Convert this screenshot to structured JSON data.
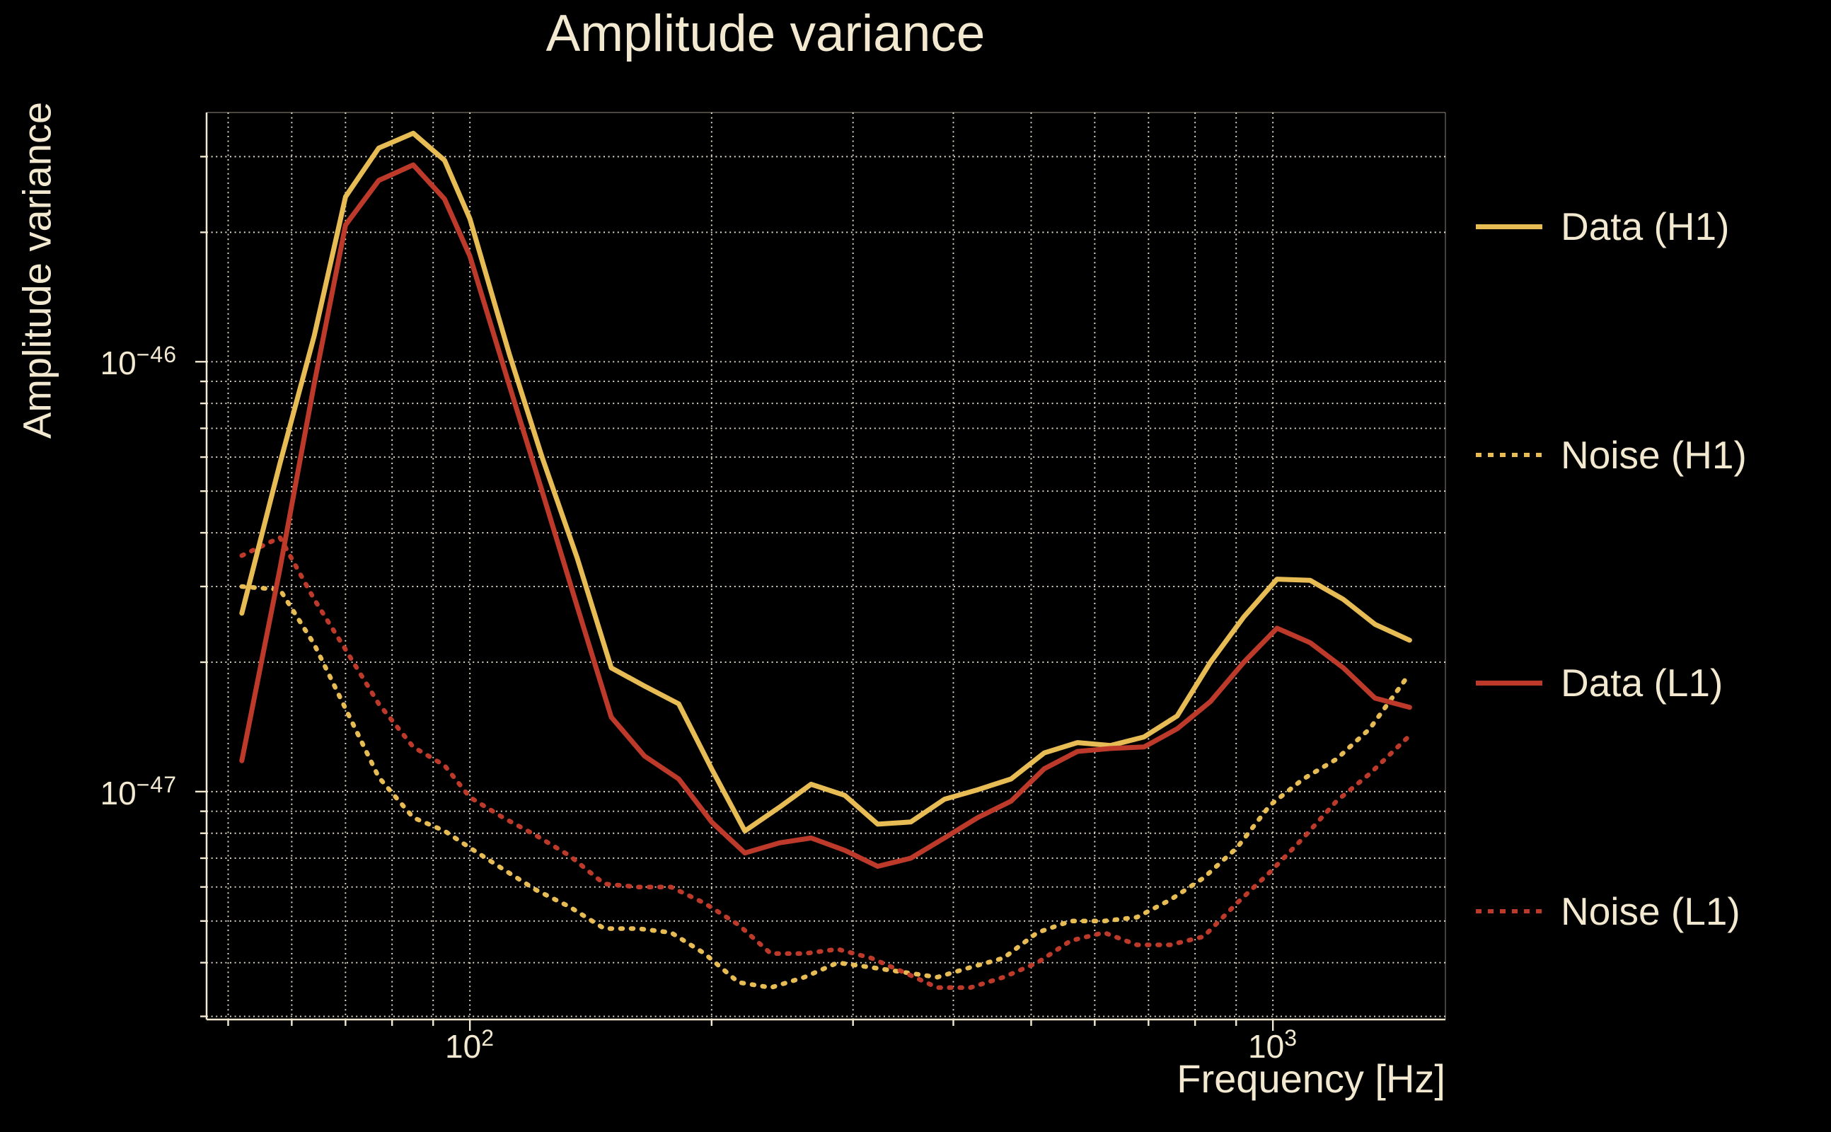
{
  "title": "Amplitude variance",
  "colors": {
    "background": "#000000",
    "text": "#f2e9d0",
    "grid": "#efe8d3",
    "h1": "#e8bc55",
    "l1": "#bd3a2b"
  },
  "chart_data": {
    "type": "line",
    "title": "Amplitude variance",
    "xlabel": "Frequency [Hz]",
    "ylabel": "Amplitude variance",
    "x_scale": "log",
    "y_scale": "log",
    "xlim": [
      47,
      1640
    ],
    "ylim": [
      2.95e-48,
      3.8e-46
    ],
    "grid": "major+minor, dotted, both axes",
    "legend_position": "outside right",
    "x_ticks": [
      {
        "value": 100,
        "base": "10",
        "exp": "2"
      },
      {
        "value": 1000,
        "base": "10",
        "exp": "3"
      }
    ],
    "y_ticks": [
      {
        "value": 1e-46,
        "base": "10",
        "exp": "−46"
      },
      {
        "value": 1e-47,
        "base": "10",
        "exp": "−47"
      }
    ],
    "value_scale": 1e-47,
    "series": [
      {
        "name": "Data (H1)",
        "style": "solid",
        "color": "#e8bc55",
        "points": [
          [
            52,
            2.6
          ],
          [
            58,
            5.8
          ],
          [
            64,
            11.5
          ],
          [
            70,
            24.2
          ],
          [
            77,
            31.4
          ],
          [
            85,
            34.0
          ],
          [
            93,
            29.4
          ],
          [
            100,
            21.5
          ],
          [
            112,
            10.4
          ],
          [
            123,
            6.0
          ],
          [
            136,
            3.5
          ],
          [
            150,
            1.94
          ],
          [
            165,
            1.76
          ],
          [
            182,
            1.6
          ],
          [
            200,
            1.13
          ],
          [
            220,
            0.81
          ],
          [
            243,
            0.92
          ],
          [
            266,
            1.04
          ],
          [
            293,
            0.98
          ],
          [
            322,
            0.84
          ],
          [
            354,
            0.85
          ],
          [
            390,
            0.96
          ],
          [
            429,
            1.01
          ],
          [
            472,
            1.07
          ],
          [
            519,
            1.23
          ],
          [
            571,
            1.3
          ],
          [
            628,
            1.28
          ],
          [
            691,
            1.34
          ],
          [
            760,
            1.5
          ],
          [
            836,
            2.0
          ],
          [
            920,
            2.55
          ],
          [
            1012,
            3.12
          ],
          [
            1113,
            3.1
          ],
          [
            1224,
            2.8
          ],
          [
            1340,
            2.45
          ],
          [
            1480,
            2.25
          ]
        ]
      },
      {
        "name": "Noise (H1)",
        "style": "dotted",
        "color": "#e8bc55",
        "points": [
          [
            52,
            3.0
          ],
          [
            58,
            2.95
          ],
          [
            64,
            2.2
          ],
          [
            70,
            1.56
          ],
          [
            77,
            1.08
          ],
          [
            85,
            0.87
          ],
          [
            93,
            0.81
          ],
          [
            100,
            0.74
          ],
          [
            110,
            0.66
          ],
          [
            121,
            0.59
          ],
          [
            133,
            0.54
          ],
          [
            147,
            0.48
          ],
          [
            162,
            0.48
          ],
          [
            178,
            0.47
          ],
          [
            196,
            0.42
          ],
          [
            216,
            0.36
          ],
          [
            237,
            0.35
          ],
          [
            261,
            0.37
          ],
          [
            287,
            0.4
          ],
          [
            316,
            0.39
          ],
          [
            347,
            0.38
          ],
          [
            382,
            0.37
          ],
          [
            420,
            0.39
          ],
          [
            462,
            0.41
          ],
          [
            509,
            0.47
          ],
          [
            560,
            0.5
          ],
          [
            616,
            0.5
          ],
          [
            677,
            0.51
          ],
          [
            745,
            0.56
          ],
          [
            820,
            0.63
          ],
          [
            902,
            0.74
          ],
          [
            992,
            0.93
          ],
          [
            1091,
            1.07
          ],
          [
            1200,
            1.19
          ],
          [
            1320,
            1.4
          ],
          [
            1480,
            1.88
          ]
        ]
      },
      {
        "name": "Data (L1)",
        "style": "solid",
        "color": "#bd3a2b",
        "points": [
          [
            52,
            1.18
          ],
          [
            58,
            3.3
          ],
          [
            64,
            8.9
          ],
          [
            70,
            20.8
          ],
          [
            77,
            26.4
          ],
          [
            85,
            28.7
          ],
          [
            93,
            23.9
          ],
          [
            100,
            17.6
          ],
          [
            112,
            8.8
          ],
          [
            123,
            5.0
          ],
          [
            136,
            2.7
          ],
          [
            150,
            1.49
          ],
          [
            165,
            1.21
          ],
          [
            182,
            1.07
          ],
          [
            200,
            0.85
          ],
          [
            220,
            0.72
          ],
          [
            243,
            0.76
          ],
          [
            266,
            0.78
          ],
          [
            293,
            0.73
          ],
          [
            322,
            0.67
          ],
          [
            354,
            0.7
          ],
          [
            390,
            0.78
          ],
          [
            429,
            0.87
          ],
          [
            472,
            0.95
          ],
          [
            519,
            1.13
          ],
          [
            571,
            1.24
          ],
          [
            628,
            1.26
          ],
          [
            691,
            1.27
          ],
          [
            760,
            1.4
          ],
          [
            836,
            1.62
          ],
          [
            920,
            2.0
          ],
          [
            1012,
            2.4
          ],
          [
            1113,
            2.22
          ],
          [
            1224,
            1.94
          ],
          [
            1340,
            1.65
          ],
          [
            1480,
            1.57
          ]
        ]
      },
      {
        "name": "Noise (L1)",
        "style": "dotted",
        "color": "#bd3a2b",
        "points": [
          [
            52,
            3.54
          ],
          [
            58,
            3.9
          ],
          [
            64,
            2.8
          ],
          [
            70,
            2.14
          ],
          [
            77,
            1.6
          ],
          [
            85,
            1.27
          ],
          [
            93,
            1.15
          ],
          [
            100,
            0.97
          ],
          [
            110,
            0.87
          ],
          [
            121,
            0.79
          ],
          [
            133,
            0.71
          ],
          [
            147,
            0.61
          ],
          [
            162,
            0.6
          ],
          [
            178,
            0.6
          ],
          [
            196,
            0.55
          ],
          [
            216,
            0.49
          ],
          [
            237,
            0.42
          ],
          [
            261,
            0.42
          ],
          [
            287,
            0.43
          ],
          [
            316,
            0.41
          ],
          [
            347,
            0.38
          ],
          [
            382,
            0.35
          ],
          [
            420,
            0.35
          ],
          [
            462,
            0.37
          ],
          [
            509,
            0.4
          ],
          [
            560,
            0.45
          ],
          [
            616,
            0.47
          ],
          [
            677,
            0.44
          ],
          [
            745,
            0.44
          ],
          [
            820,
            0.46
          ],
          [
            902,
            0.55
          ],
          [
            992,
            0.65
          ],
          [
            1091,
            0.78
          ],
          [
            1200,
            0.95
          ],
          [
            1320,
            1.1
          ],
          [
            1480,
            1.35
          ]
        ]
      }
    ]
  },
  "legend": {
    "entries": [
      {
        "label": "Data (H1)"
      },
      {
        "label": "Noise (H1)"
      },
      {
        "label": "Data (L1)"
      },
      {
        "label": "Noise (L1)"
      }
    ]
  }
}
